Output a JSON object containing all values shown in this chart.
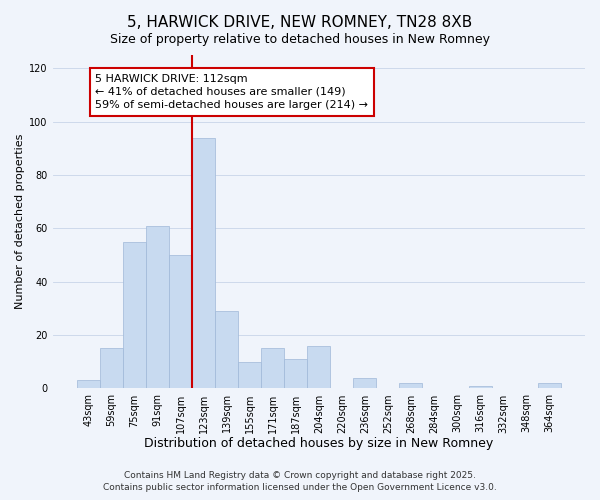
{
  "title": "5, HARWICK DRIVE, NEW ROMNEY, TN28 8XB",
  "subtitle": "Size of property relative to detached houses in New Romney",
  "bar_labels": [
    "43sqm",
    "59sqm",
    "75sqm",
    "91sqm",
    "107sqm",
    "123sqm",
    "139sqm",
    "155sqm",
    "171sqm",
    "187sqm",
    "204sqm",
    "220sqm",
    "236sqm",
    "252sqm",
    "268sqm",
    "284sqm",
    "300sqm",
    "316sqm",
    "332sqm",
    "348sqm",
    "364sqm"
  ],
  "bar_values": [
    3,
    15,
    55,
    61,
    50,
    94,
    29,
    10,
    15,
    11,
    16,
    0,
    4,
    0,
    2,
    0,
    0,
    1,
    0,
    0,
    2
  ],
  "bar_color": "#c8daf0",
  "bar_edgecolor": "#9fb8d8",
  "bar_width": 1.0,
  "redline_index": 5,
  "redline_color": "#cc0000",
  "xlabel": "Distribution of detached houses by size in New Romney",
  "ylabel": "Number of detached properties",
  "ylim": [
    0,
    125
  ],
  "yticks": [
    0,
    20,
    40,
    60,
    80,
    100,
    120
  ],
  "annotation_title": "5 HARWICK DRIVE: 112sqm",
  "annotation_line1": "← 41% of detached houses are smaller (149)",
  "annotation_line2": "59% of semi-detached houses are larger (214) →",
  "annotation_box_facecolor": "#ffffff",
  "annotation_box_edgecolor": "#cc0000",
  "footer1": "Contains HM Land Registry data © Crown copyright and database right 2025.",
  "footer2": "Contains public sector information licensed under the Open Government Licence v3.0.",
  "background_color": "#f0f4fb",
  "grid_color": "#c8d4e8",
  "title_fontsize": 11,
  "subtitle_fontsize": 9,
  "xlabel_fontsize": 9,
  "ylabel_fontsize": 8,
  "tick_fontsize": 7,
  "annotation_fontsize": 8,
  "footer_fontsize": 6.5
}
